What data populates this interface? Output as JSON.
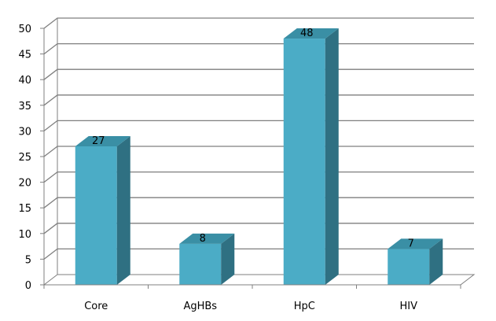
{
  "chart_data": {
    "type": "bar",
    "style": "3d-column",
    "categories": [
      "Core",
      "AgHBs",
      "HpC",
      "HIV"
    ],
    "values": [
      27,
      8,
      48,
      7
    ],
    "data_labels": [
      "27",
      "8",
      "48",
      "7"
    ],
    "y_ticks": [
      "0",
      "5",
      "10",
      "15",
      "20",
      "25",
      "30",
      "35",
      "40",
      "45",
      "50"
    ],
    "ylim": [
      0,
      50
    ],
    "grid": true,
    "legend": "none",
    "colors": {
      "bar_front": "#4bacc6",
      "bar_top": "#3a8fa5",
      "bar_side": "#2f7082",
      "grid": "#7f7f7f",
      "axis": "#808080"
    }
  }
}
